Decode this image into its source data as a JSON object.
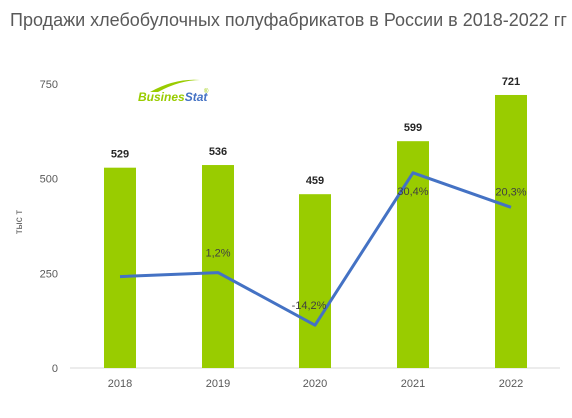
{
  "chart_data": {
    "type": "bar",
    "title": "Продажи хлебобулочных полуфабрикатов в России в 2018-2022 гг",
    "ylabel": "тыс т",
    "categories": [
      "2018",
      "2019",
      "2020",
      "2021",
      "2022"
    ],
    "values": [
      529,
      536,
      459,
      599,
      721
    ],
    "value_labels": [
      "529",
      "536",
      "459",
      "599",
      "721"
    ],
    "yticks": [
      "0",
      "250",
      "500",
      "750"
    ],
    "ylim": [
      0,
      750
    ],
    "growth_series": {
      "type": "line",
      "values": [
        null,
        1.2,
        -14.2,
        30.4,
        20.3
      ],
      "labels": [
        "",
        "1,2%",
        "-14,2%",
        "30,4%",
        "20,3%"
      ]
    },
    "grid": false,
    "colors": {
      "bar": "#99cc00",
      "line": "#4472c4",
      "text": "#595959"
    }
  },
  "logo": {
    "text_bold": "Busines",
    "text_italic": "Stat",
    "mark": "®"
  }
}
